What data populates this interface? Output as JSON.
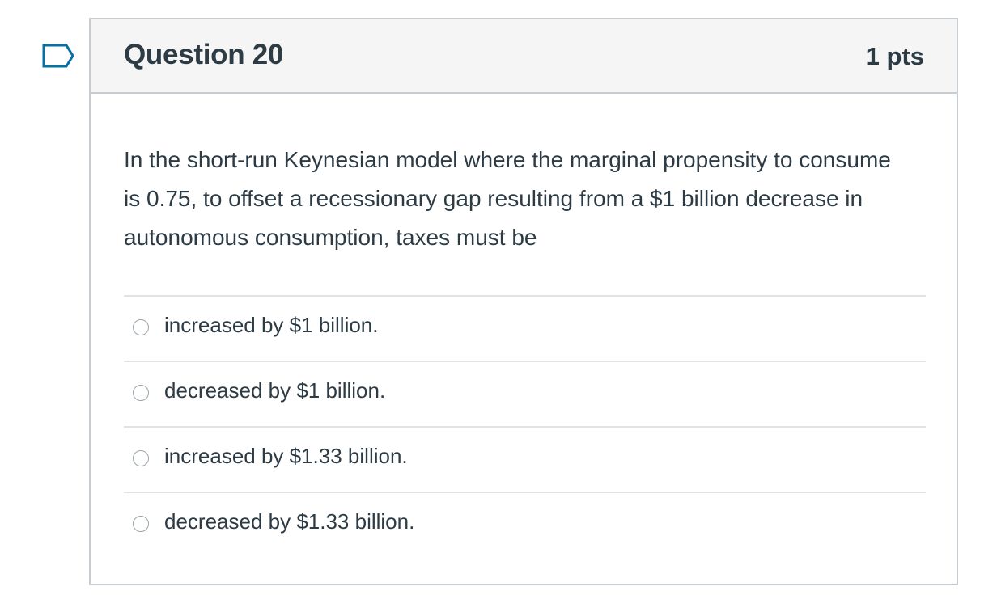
{
  "question": {
    "title": "Question 20",
    "points": "1 pts",
    "text": "In the short-run Keynesian model where the marginal propensity to consume is 0.75, to offset a recessionary gap resulting from a $1 billion decrease in autonomous consumption, taxes must be",
    "flag_icon": "flag-icon",
    "answers": [
      {
        "label": "increased by $1 billion.",
        "selected": false
      },
      {
        "label": "decreased by $1 billion.",
        "selected": false
      },
      {
        "label": "increased by $1.33 billion.",
        "selected": false
      },
      {
        "label": "decreased by $1.33 billion.",
        "selected": false
      }
    ]
  }
}
